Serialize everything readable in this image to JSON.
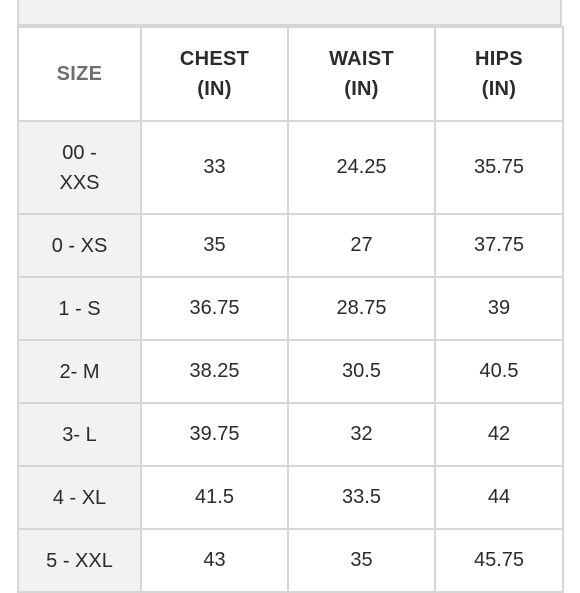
{
  "table": {
    "headers": [
      "SIZE",
      "CHEST\n(IN)",
      "WAIST\n(IN)",
      "HIPS\n(IN)"
    ],
    "header_lines": [
      [
        "SIZE"
      ],
      [
        "CHEST",
        "(IN)"
      ],
      [
        "WAIST",
        "(IN)"
      ],
      [
        "HIPS",
        "(IN)"
      ]
    ],
    "rows": [
      {
        "size_lines": [
          "00 -",
          "XXS"
        ],
        "chest": "33",
        "waist": "24.25",
        "hips": "35.75"
      },
      {
        "size_lines": [
          "0 - XS"
        ],
        "chest": "35",
        "waist": "27",
        "hips": "37.75"
      },
      {
        "size_lines": [
          "1 - S"
        ],
        "chest": "36.75",
        "waist": "28.75",
        "hips": "39"
      },
      {
        "size_lines": [
          "2- M"
        ],
        "chest": "38.25",
        "waist": "30.5",
        "hips": "40.5"
      },
      {
        "size_lines": [
          "3- L"
        ],
        "chest": "39.75",
        "waist": "32",
        "hips": "42"
      },
      {
        "size_lines": [
          "4 - XL"
        ],
        "chest": "41.5",
        "waist": "33.5",
        "hips": "44"
      },
      {
        "size_lines": [
          "5 - XXL"
        ],
        "chest": "43",
        "waist": "35",
        "hips": "45.75"
      }
    ]
  },
  "colors": {
    "border": "#d6d6d6",
    "size_column_bg": "#f2f2f2",
    "text": "#2b2b2b",
    "size_header_text": "#6f6f6f"
  }
}
